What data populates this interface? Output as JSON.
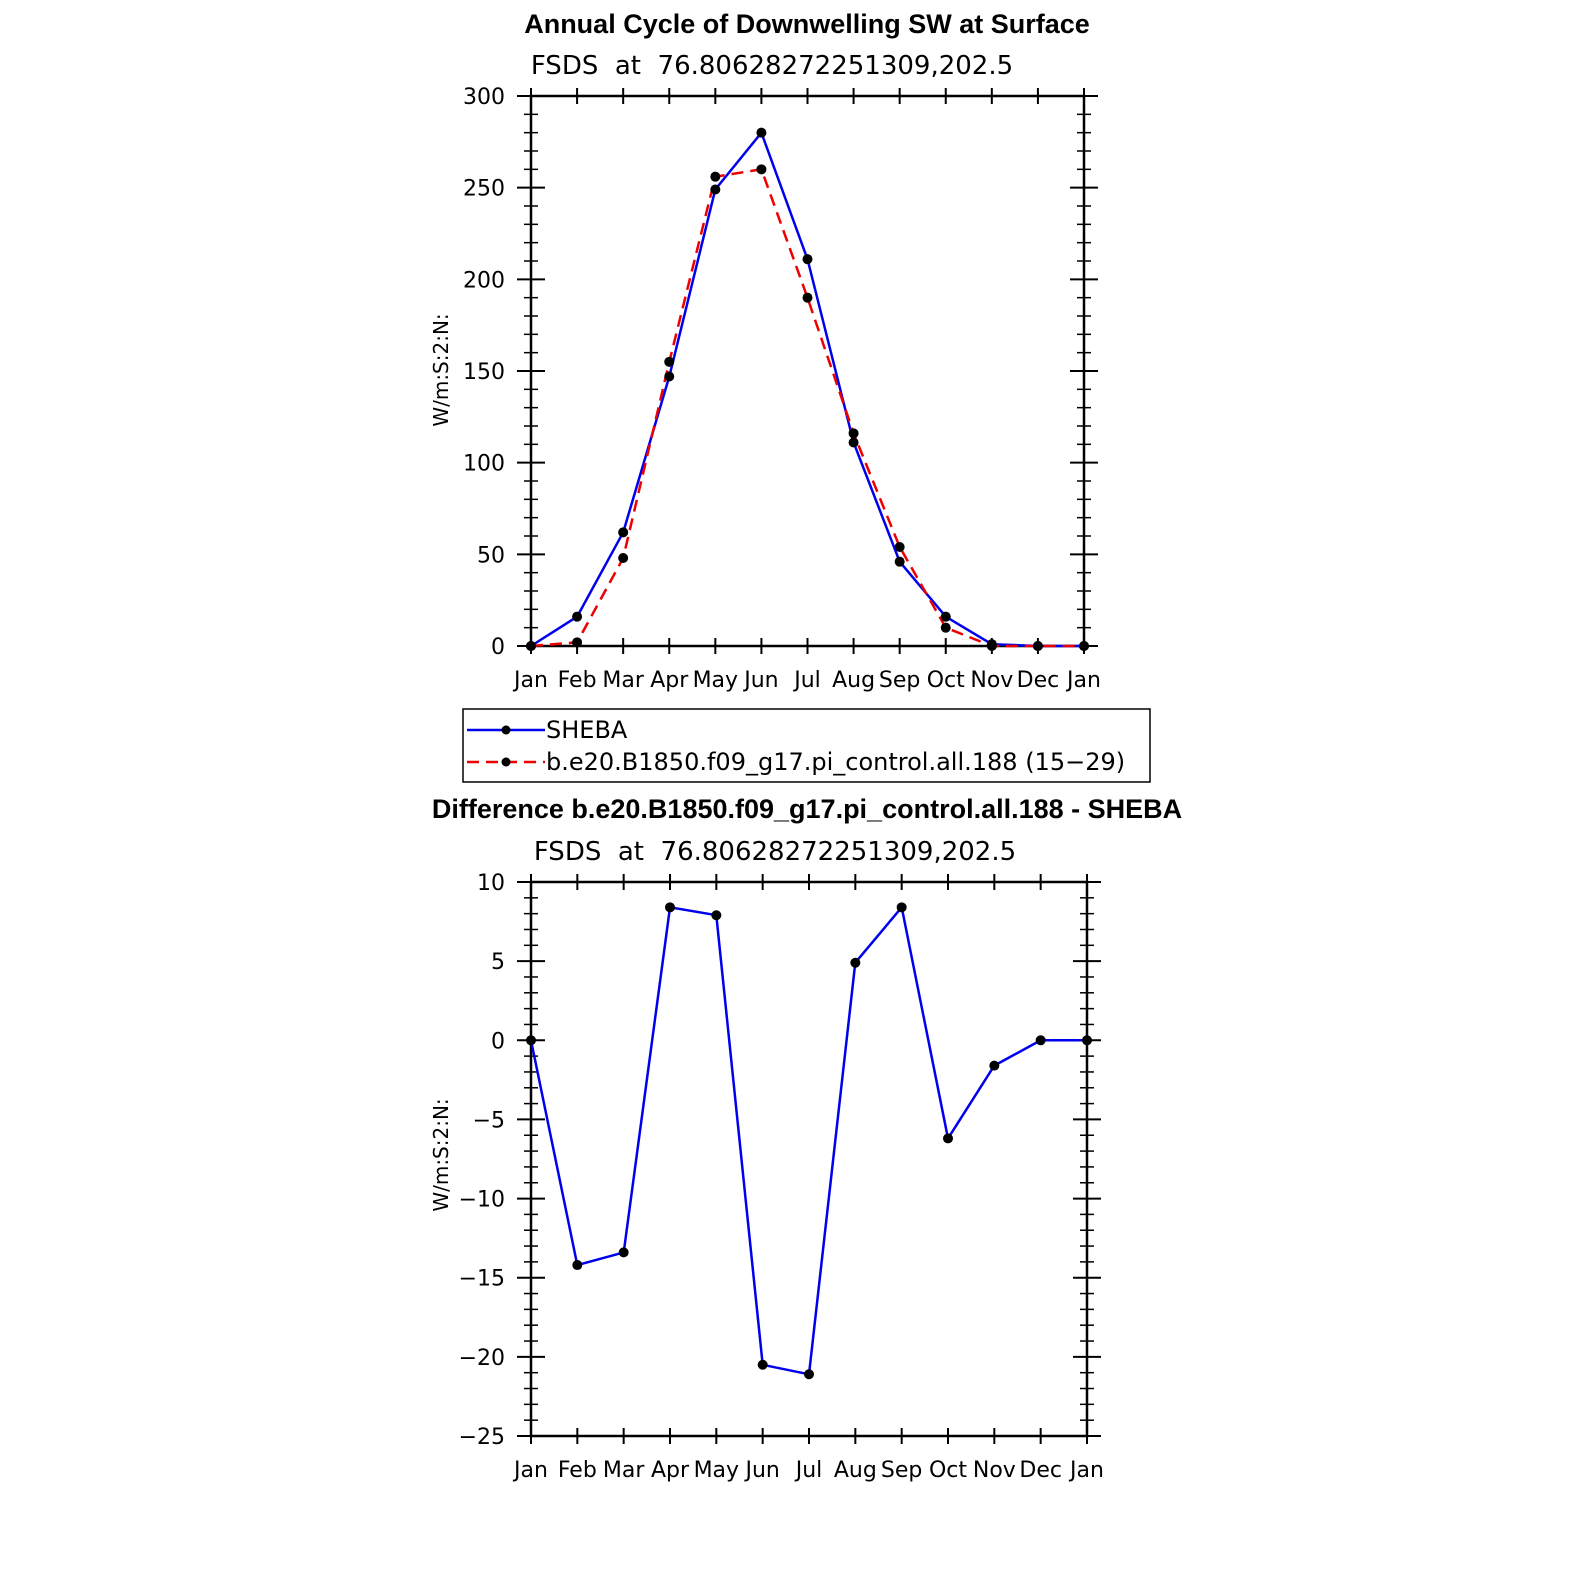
{
  "colors": {
    "obs": "#0000ee",
    "model": "#ee0000",
    "marker": "#000000",
    "axis": "#000000"
  },
  "chart_data": [
    {
      "type": "line",
      "title": "Annual Cycle of Downwelling SW at Surface",
      "subtitle": "FSDS  at  76.80628272251309,202.5",
      "ylabel": "W/m:S:2:N:",
      "xlabel": "",
      "ylim": [
        0,
        300
      ],
      "yticks": [
        0,
        50,
        100,
        150,
        200,
        250,
        300
      ],
      "ytick_labels": [
        "0",
        "50",
        "100",
        "150",
        "200",
        "250",
        "300"
      ],
      "categories": [
        "Jan",
        "Feb",
        "Mar",
        "Apr",
        "May",
        "Jun",
        "Jul",
        "Aug",
        "Sep",
        "Oct",
        "Nov",
        "Dec",
        "Jan"
      ],
      "series": [
        {
          "name": "SHEBA",
          "style": "solid",
          "values": [
            0,
            16,
            62,
            147,
            249,
            280,
            211,
            111,
            46,
            16,
            1,
            0,
            0
          ]
        },
        {
          "name": "b.e20.B1850.f09_g17.pi_control.all.188 (15−29)",
          "style": "dashed",
          "values": [
            0,
            2,
            48,
            155,
            256,
            260,
            190,
            116,
            54,
            10,
            0,
            0,
            0
          ]
        }
      ],
      "legend": "below"
    },
    {
      "type": "line",
      "title": "Difference b.e20.B1850.f09_g17.pi_control.all.188 - SHEBA",
      "subtitle": "FSDS  at  76.80628272251309,202.5",
      "ylabel": "W/m:S:2:N:",
      "xlabel": "",
      "ylim": [
        -25,
        10
      ],
      "yticks": [
        -25,
        -20,
        -15,
        -10,
        -5,
        0,
        5,
        10
      ],
      "ytick_labels": [
        "−25",
        "−20",
        "−15",
        "−10",
        "−5",
        "0",
        "5",
        "10"
      ],
      "categories": [
        "Jan",
        "Feb",
        "Mar",
        "Apr",
        "May",
        "Jun",
        "Jul",
        "Aug",
        "Sep",
        "Oct",
        "Nov",
        "Dec",
        "Jan"
      ],
      "series": [
        {
          "style": "solid",
          "values": [
            0,
            -14.2,
            -13.4,
            8.4,
            7.9,
            -20.5,
            -21.1,
            4.9,
            8.4,
            -6.2,
            -1.6,
            0,
            0
          ]
        }
      ]
    }
  ]
}
